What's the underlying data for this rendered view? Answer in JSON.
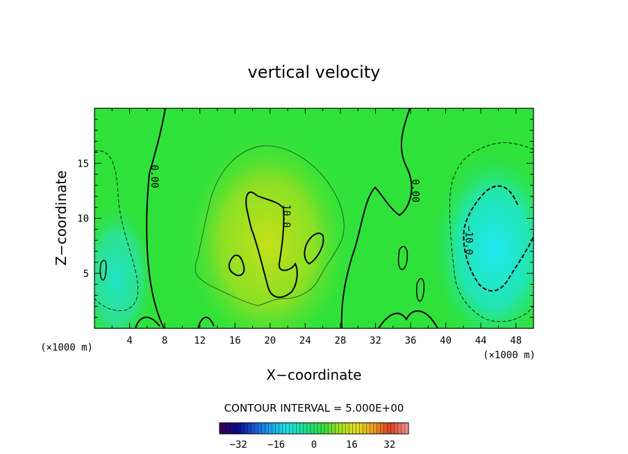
{
  "chart_data": {
    "type": "heatmap",
    "title": "vertical velocity",
    "xlabel": "X−coordinate",
    "ylabel": "Z−coordinate",
    "x_unit": "(×1000 m)",
    "y_unit": "(×1000 m)",
    "xlim": [
      0,
      50
    ],
    "ylim": [
      0,
      20
    ],
    "x_ticks": [
      4,
      8,
      12,
      16,
      20,
      24,
      28,
      32,
      36,
      40,
      44,
      48
    ],
    "y_ticks": [
      5,
      10,
      15
    ],
    "contour_interval_text": "CONTOUR INTERVAL = 5.000E+00",
    "contour_labels": [
      {
        "text": "0.00",
        "x": 6.5,
        "y": 13.8
      },
      {
        "text": "10.0",
        "x": 21.5,
        "y": 10.2
      },
      {
        "text": "0.00",
        "x": 36.2,
        "y": 12.5
      },
      {
        "text": "−10.0",
        "x": 42.3,
        "y": 8.0
      }
    ],
    "colorbar": {
      "ticks": [
        -32,
        -16,
        0,
        16,
        32
      ],
      "tick_labels": [
        "−32",
        "−16",
        "0",
        "16",
        "32"
      ],
      "range": [
        -40,
        40
      ],
      "colors": [
        "#3a005a",
        "#0a0a90",
        "#1a5ad8",
        "#1aa8f0",
        "#20e6e0",
        "#20e090",
        "#30e040",
        "#a0e020",
        "#e0e020",
        "#f0a020",
        "#e04020",
        "#f09090"
      ]
    },
    "field_colors": {
      "background": "#2fe23a",
      "positive_core": "#b9e21a",
      "negative_core": "#21e6e6"
    }
  }
}
